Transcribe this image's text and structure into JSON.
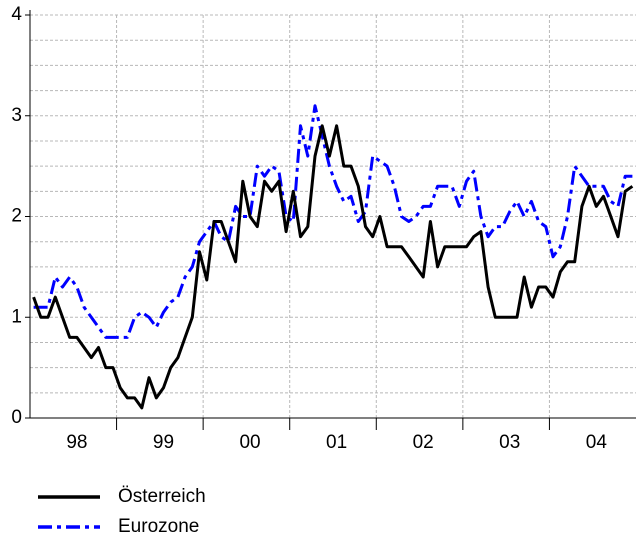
{
  "chart_data": {
    "type": "line",
    "categories": [
      null,
      null,
      null,
      null,
      null,
      null,
      "98",
      null,
      null,
      null,
      null,
      null,
      null,
      null,
      null,
      null,
      null,
      null,
      "99",
      null,
      null,
      null,
      null,
      null,
      null,
      null,
      null,
      null,
      null,
      null,
      "00",
      null,
      null,
      null,
      null,
      null,
      null,
      null,
      null,
      null,
      null,
      null,
      "01",
      null,
      null,
      null,
      null,
      null,
      null,
      null,
      null,
      null,
      null,
      null,
      "02",
      null,
      null,
      null,
      null,
      null,
      null,
      null,
      null,
      null,
      null,
      null,
      "03",
      null,
      null,
      null,
      null,
      null,
      null,
      null,
      null,
      null,
      null,
      null,
      "04",
      null,
      null,
      null,
      null,
      null
    ],
    "series": [
      {
        "name": "Österreich",
        "color": "#000000",
        "dash": "solid",
        "values": [
          1.2,
          1.0,
          1.0,
          1.2,
          1.0,
          0.8,
          0.8,
          0.7,
          0.6,
          0.7,
          0.5,
          0.5,
          0.3,
          0.2,
          0.2,
          0.1,
          0.4,
          0.2,
          0.3,
          0.5,
          0.6,
          0.8,
          1.0,
          1.65,
          1.37,
          1.95,
          1.95,
          1.75,
          1.55,
          2.35,
          2.0,
          1.9,
          2.35,
          2.25,
          2.35,
          1.85,
          2.25,
          1.8,
          1.9,
          2.6,
          2.9,
          2.6,
          2.9,
          2.5,
          2.5,
          2.3,
          1.9,
          1.8,
          2.0,
          1.7,
          1.7,
          1.7,
          1.6,
          1.5,
          1.4,
          1.95,
          1.5,
          1.7,
          1.7,
          1.7,
          1.7,
          1.8,
          1.85,
          1.3,
          1.0,
          1.0,
          1.0,
          1.0,
          1.4,
          1.1,
          1.3,
          1.3,
          1.2,
          1.45,
          1.55,
          1.55,
          2.1,
          2.3,
          2.1,
          2.2,
          2.0,
          1.8,
          2.25,
          2.3
        ]
      },
      {
        "name": "Eurozone",
        "color": "#0000ff",
        "dash": "dashdot",
        "values": [
          1.1,
          1.1,
          1.1,
          1.4,
          1.3,
          1.4,
          1.3,
          1.1,
          1.0,
          0.9,
          0.8,
          0.8,
          0.8,
          0.8,
          1.0,
          1.05,
          1.0,
          0.9,
          1.05,
          1.15,
          1.2,
          1.4,
          1.5,
          1.75,
          1.85,
          1.95,
          1.8,
          1.75,
          2.1,
          2.0,
          2.0,
          2.5,
          2.4,
          2.5,
          2.45,
          2.0,
          1.95,
          2.9,
          2.6,
          3.1,
          2.8,
          2.5,
          2.3,
          2.15,
          2.2,
          1.95,
          2.05,
          2.6,
          2.55,
          2.5,
          2.3,
          2.0,
          1.95,
          2.0,
          2.1,
          2.1,
          2.3,
          2.3,
          2.3,
          2.1,
          2.35,
          2.45,
          2.0,
          1.8,
          1.9,
          1.9,
          2.05,
          2.15,
          2.0,
          2.15,
          1.95,
          1.9,
          1.6,
          1.7,
          2.0,
          2.5,
          2.4,
          2.3,
          2.3,
          2.3,
          2.15,
          2.1,
          2.4,
          2.4
        ]
      }
    ],
    "ylim": [
      0,
      4
    ],
    "yticks": [
      0,
      1,
      2,
      3,
      4
    ],
    "yminor_ticks": [
      0.25,
      0.5,
      0.75,
      1.25,
      1.5,
      1.75,
      2.25,
      2.5,
      2.75,
      3.25,
      3.5,
      3.75
    ],
    "grid": true,
    "legend": "bottom-left"
  }
}
